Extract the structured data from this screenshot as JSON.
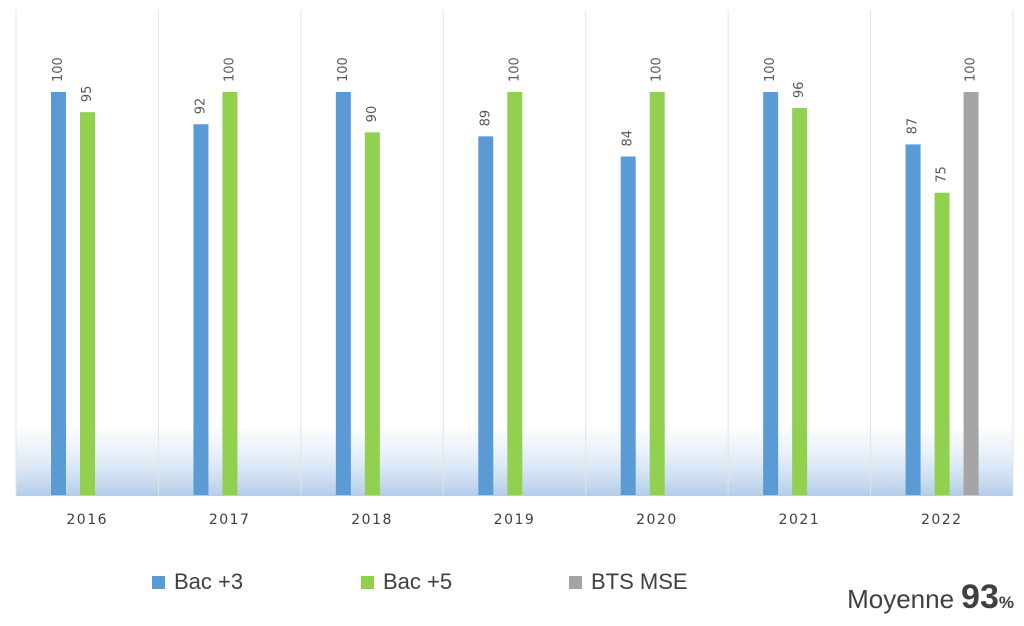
{
  "chart_data": {
    "type": "bar",
    "categories": [
      "2016",
      "2017",
      "2018",
      "2019",
      "2020",
      "2021",
      "2022"
    ],
    "series": [
      {
        "name": "Bac +3",
        "color": "#5b9bd5",
        "values": [
          100,
          92,
          100,
          89,
          84,
          100,
          87
        ]
      },
      {
        "name": "Bac +5",
        "color": "#92d050",
        "values": [
          95,
          100,
          90,
          100,
          100,
          96,
          75
        ]
      },
      {
        "name": "BTS MSE",
        "color": "#a5a5a5",
        "values": [
          null,
          null,
          null,
          null,
          null,
          null,
          100
        ]
      }
    ],
    "ylim": [
      0,
      100
    ],
    "grid": "vertical separators",
    "legend_placement": "bottom"
  },
  "average": {
    "label": "Moyenne",
    "value": "93",
    "unit": "%"
  }
}
